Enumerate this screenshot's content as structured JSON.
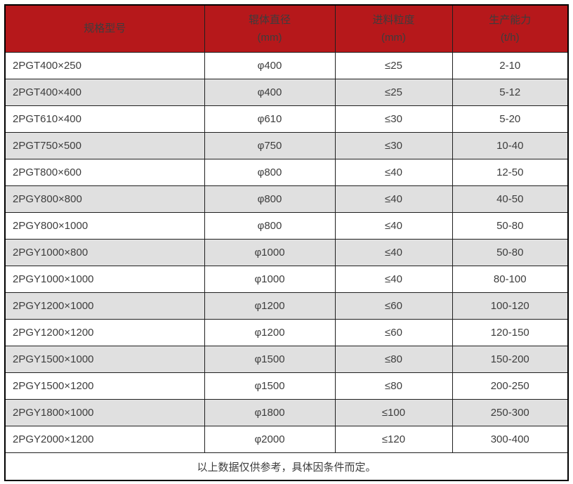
{
  "colors": {
    "header_bg": "#b6181b",
    "header_text": "#ffffff",
    "row_bg": "#ffffff",
    "row_alt_bg": "#e0e0e0",
    "border": "#1f1f1f",
    "outer_border": "#000000",
    "body_text": "#3d3d3d"
  },
  "table": {
    "columns": [
      {
        "label": "规格型号",
        "unit": ""
      },
      {
        "label": "辊体直径",
        "unit": "(mm)"
      },
      {
        "label": "进料粒度",
        "unit": "(mm)"
      },
      {
        "label": "生产能力",
        "unit": "(t/h)"
      }
    ],
    "rows": [
      [
        "2PGT400×250",
        "φ400",
        "≤25",
        "2-10"
      ],
      [
        "2PGT400×400",
        "φ400",
        "≤25",
        "5-12"
      ],
      [
        "2PGT610×400",
        "φ610",
        "≤30",
        "5-20"
      ],
      [
        "2PGT750×500",
        "φ750",
        "≤30",
        "10-40"
      ],
      [
        "2PGT800×600",
        "φ800",
        "≤40",
        "12-50"
      ],
      [
        "2PGY800×800",
        "φ800",
        "≤40",
        "40-50"
      ],
      [
        "2PGY800×1000",
        "φ800",
        "≤40",
        "50-80"
      ],
      [
        "2PGY1000×800",
        "φ1000",
        "≤40",
        "50-80"
      ],
      [
        "2PGY1000×1000",
        "φ1000",
        "≤40",
        "80-100"
      ],
      [
        "2PGY1200×1000",
        "φ1200",
        "≤60",
        "100-120"
      ],
      [
        "2PGY1200×1200",
        "φ1200",
        "≤60",
        "120-150"
      ],
      [
        "2PGY1500×1000",
        "φ1500",
        "≤80",
        "150-200"
      ],
      [
        "2PGY1500×1200",
        "φ1500",
        "≤80",
        "200-250"
      ],
      [
        "2PGY1800×1000",
        "φ1800",
        "≤100",
        "250-300"
      ],
      [
        "2PGY2000×1200",
        "φ2000",
        "≤120",
        "300-400"
      ]
    ],
    "footer_note": "以上数据仅供参考，具体因条件而定。"
  },
  "chart_data": {
    "type": "table",
    "title": "",
    "columns": [
      "规格型号",
      "辊体直径 (mm)",
      "进料粒度 (mm)",
      "生产能力 (t/h)"
    ],
    "rows": [
      [
        "2PGT400×250",
        "φ400",
        "≤25",
        "2-10"
      ],
      [
        "2PGT400×400",
        "φ400",
        "≤25",
        "5-12"
      ],
      [
        "2PGT610×400",
        "φ610",
        "≤30",
        "5-20"
      ],
      [
        "2PGT750×500",
        "φ750",
        "≤30",
        "10-40"
      ],
      [
        "2PGT800×600",
        "φ800",
        "≤40",
        "12-50"
      ],
      [
        "2PGY800×800",
        "φ800",
        "≤40",
        "40-50"
      ],
      [
        "2PGY800×1000",
        "φ800",
        "≤40",
        "50-80"
      ],
      [
        "2PGY1000×800",
        "φ1000",
        "≤40",
        "50-80"
      ],
      [
        "2PGY1000×1000",
        "φ1000",
        "≤40",
        "80-100"
      ],
      [
        "2PGY1200×1000",
        "φ1200",
        "≤60",
        "100-120"
      ],
      [
        "2PGY1200×1200",
        "φ1200",
        "≤60",
        "120-150"
      ],
      [
        "2PGY1500×1000",
        "φ1500",
        "≤80",
        "150-200"
      ],
      [
        "2PGY1500×1200",
        "φ1500",
        "≤80",
        "200-250"
      ],
      [
        "2PGY1800×1000",
        "φ1800",
        "≤100",
        "250-300"
      ],
      [
        "2PGY2000×1200",
        "φ2000",
        "≤120",
        "300-400"
      ]
    ],
    "footnote": "以上数据仅供参考，具体因条件而定。"
  }
}
